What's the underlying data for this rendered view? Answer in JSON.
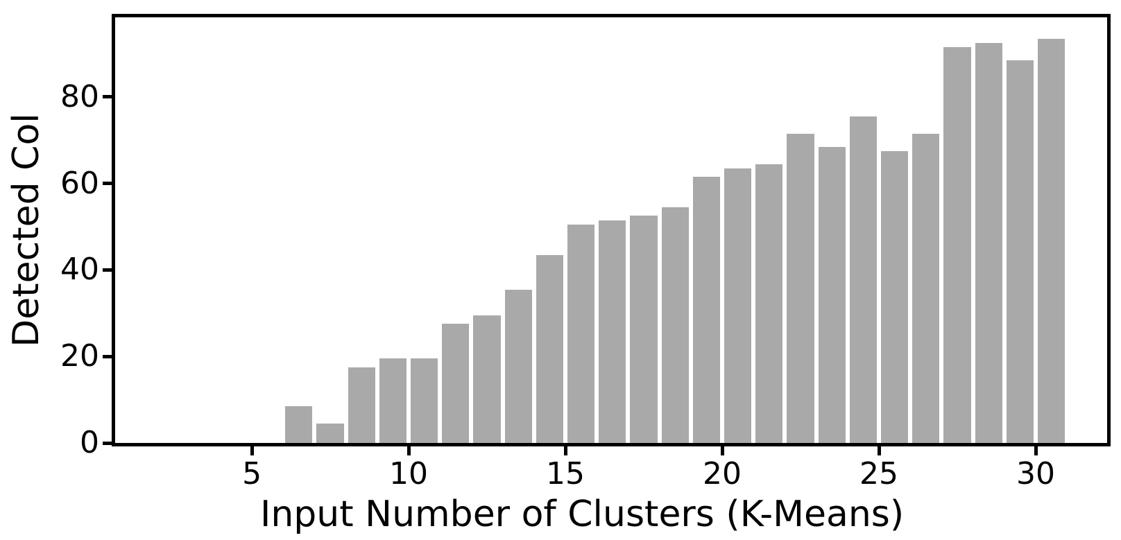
{
  "figure": {
    "background_color": "#ffffff",
    "axis_color": "#000000",
    "text_color": "#000000"
  },
  "chart_data": {
    "type": "bar",
    "title": "",
    "xlabel": "Input Number of Clusters (K-Means)",
    "ylabel": "Detected Col",
    "bar_color": "#a9a9a9",
    "bar_width": 0.87,
    "grid": false,
    "xlim": [
      0.64,
      32.28
    ],
    "ylim": [
      0,
      98.4
    ],
    "xticks": [
      5,
      10,
      15,
      20,
      25,
      30
    ],
    "yticks": [
      0,
      20,
      40,
      60,
      80
    ],
    "x": [
      6.5,
      7.5,
      8.5,
      9.5,
      10.5,
      11.5,
      12.5,
      13.5,
      14.5,
      15.5,
      16.5,
      17.5,
      18.5,
      19.5,
      20.5,
      21.5,
      22.5,
      23.5,
      24.5,
      25.5,
      26.5,
      27.5,
      28.5,
      29.5,
      30.5
    ],
    "values": [
      8.5,
      4.5,
      17.5,
      19.5,
      19.5,
      27.5,
      29.5,
      35.5,
      43.5,
      50.5,
      51.5,
      52.5,
      54.5,
      61.5,
      63.5,
      64.5,
      71.5,
      68.5,
      75.5,
      67.5,
      71.5,
      91.5,
      92.5,
      88.5,
      93.5
    ]
  }
}
